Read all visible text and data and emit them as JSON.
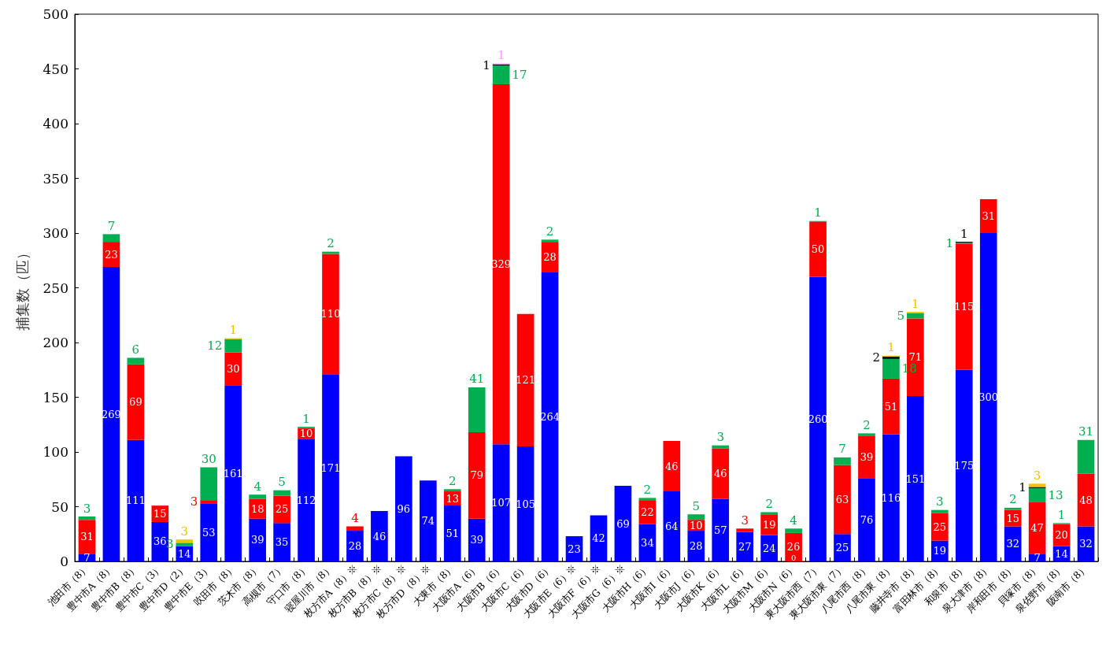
{
  "chart_data": {
    "type": "bar",
    "stacked": true,
    "ylabel": "捕集数（匹）",
    "ylim": [
      0,
      500
    ],
    "yticks": [
      0,
      50,
      100,
      150,
      200,
      250,
      300,
      350,
      400,
      450,
      500
    ],
    "grid": false,
    "data_labels": true,
    "categories": [
      "池田市（8）",
      "豊中市A（8）",
      "豊中市B（8）",
      "豊中市C（3）",
      "豊中市D（2）",
      "豊中市E（3）",
      "吹田市（8）",
      "茨木市（8）",
      "高槻市（7）",
      "守口市（8）",
      "寝屋川市（8）",
      "枚方市A（8）※",
      "枚方市B（8）※",
      "枚方市C（8）※",
      "枚方市D（8）※",
      "大東市（8）",
      "大阪市A（6）",
      "大阪市B（6）",
      "大阪市C（6）",
      "大阪市D（6）",
      "大阪市E（6）※",
      "大阪市F（6）※",
      "大阪市G（6）※",
      "大阪市H（6）",
      "大阪市I（6）",
      "大阪市J（6）",
      "大阪市K（6）",
      "大阪市L（6）",
      "大阪市M（6）",
      "大阪市N（6）",
      "東大阪市西（7）",
      "東大阪市東（7）",
      "八尾市西（8）",
      "八尾市東（8）",
      "藤井寺市（8）",
      "富田林市（8）",
      "和泉市（8）",
      "泉大津市（8）",
      "岸和田市（8）",
      "貝塚市（8）",
      "泉佐野市（8）",
      "阪南市（8）"
    ],
    "series": [
      {
        "color": "#0000ff",
        "values": [
          7,
          269,
          111,
          36,
          14,
          53,
          161,
          39,
          35,
          112,
          171,
          28,
          46,
          96,
          74,
          51,
          39,
          107,
          105,
          264,
          23,
          42,
          69,
          34,
          64,
          28,
          57,
          27,
          24,
          0,
          260,
          25,
          76,
          116,
          151,
          19,
          175,
          300,
          32,
          7,
          14,
          32
        ]
      },
      {
        "color": "#ff0000",
        "values": [
          31,
          23,
          69,
          15,
          null,
          3,
          30,
          18,
          25,
          10,
          110,
          4,
          null,
          null,
          null,
          13,
          79,
          329,
          121,
          28,
          null,
          null,
          null,
          22,
          46,
          10,
          46,
          3,
          19,
          26,
          50,
          63,
          39,
          51,
          71,
          25,
          115,
          31,
          15,
          47,
          20,
          48
        ]
      },
      {
        "color": "#00b050",
        "values": [
          3,
          7,
          6,
          null,
          3,
          30,
          12,
          4,
          5,
          1,
          2,
          null,
          null,
          null,
          null,
          2,
          41,
          17,
          null,
          2,
          null,
          null,
          null,
          2,
          null,
          5,
          3,
          null,
          2,
          4,
          1,
          7,
          2,
          18,
          5,
          3,
          1,
          null,
          2,
          13,
          1,
          31
        ]
      },
      {
        "color": "#000000",
        "values": [
          null,
          null,
          null,
          null,
          null,
          null,
          null,
          null,
          null,
          null,
          null,
          null,
          null,
          null,
          null,
          null,
          null,
          1,
          null,
          null,
          null,
          null,
          null,
          null,
          null,
          null,
          null,
          null,
          null,
          null,
          null,
          null,
          null,
          2,
          null,
          null,
          1,
          null,
          null,
          1,
          null,
          null
        ]
      },
      {
        "color": "#e6c800",
        "values": [
          null,
          null,
          null,
          null,
          3,
          null,
          1,
          null,
          null,
          null,
          null,
          null,
          null,
          null,
          null,
          null,
          null,
          null,
          null,
          null,
          null,
          null,
          null,
          null,
          null,
          null,
          null,
          null,
          null,
          null,
          null,
          null,
          null,
          null,
          null,
          null,
          null,
          null,
          null,
          null,
          null,
          null
        ]
      },
      {
        "color": "#ffc000",
        "values": [
          null,
          null,
          null,
          null,
          null,
          null,
          null,
          null,
          null,
          null,
          null,
          null,
          null,
          null,
          null,
          null,
          null,
          null,
          null,
          null,
          null,
          null,
          null,
          null,
          null,
          null,
          null,
          null,
          null,
          null,
          null,
          null,
          null,
          1,
          1,
          null,
          null,
          null,
          null,
          3,
          null,
          null
        ]
      },
      {
        "color": "#ff99ff",
        "values": [
          null,
          null,
          null,
          null,
          null,
          null,
          null,
          null,
          null,
          null,
          null,
          null,
          null,
          null,
          null,
          null,
          null,
          1,
          null,
          null,
          null,
          null,
          null,
          null,
          null,
          null,
          null,
          null,
          null,
          null,
          null,
          null,
          null,
          null,
          null,
          null,
          null,
          null,
          null,
          null,
          null,
          null
        ]
      }
    ]
  }
}
